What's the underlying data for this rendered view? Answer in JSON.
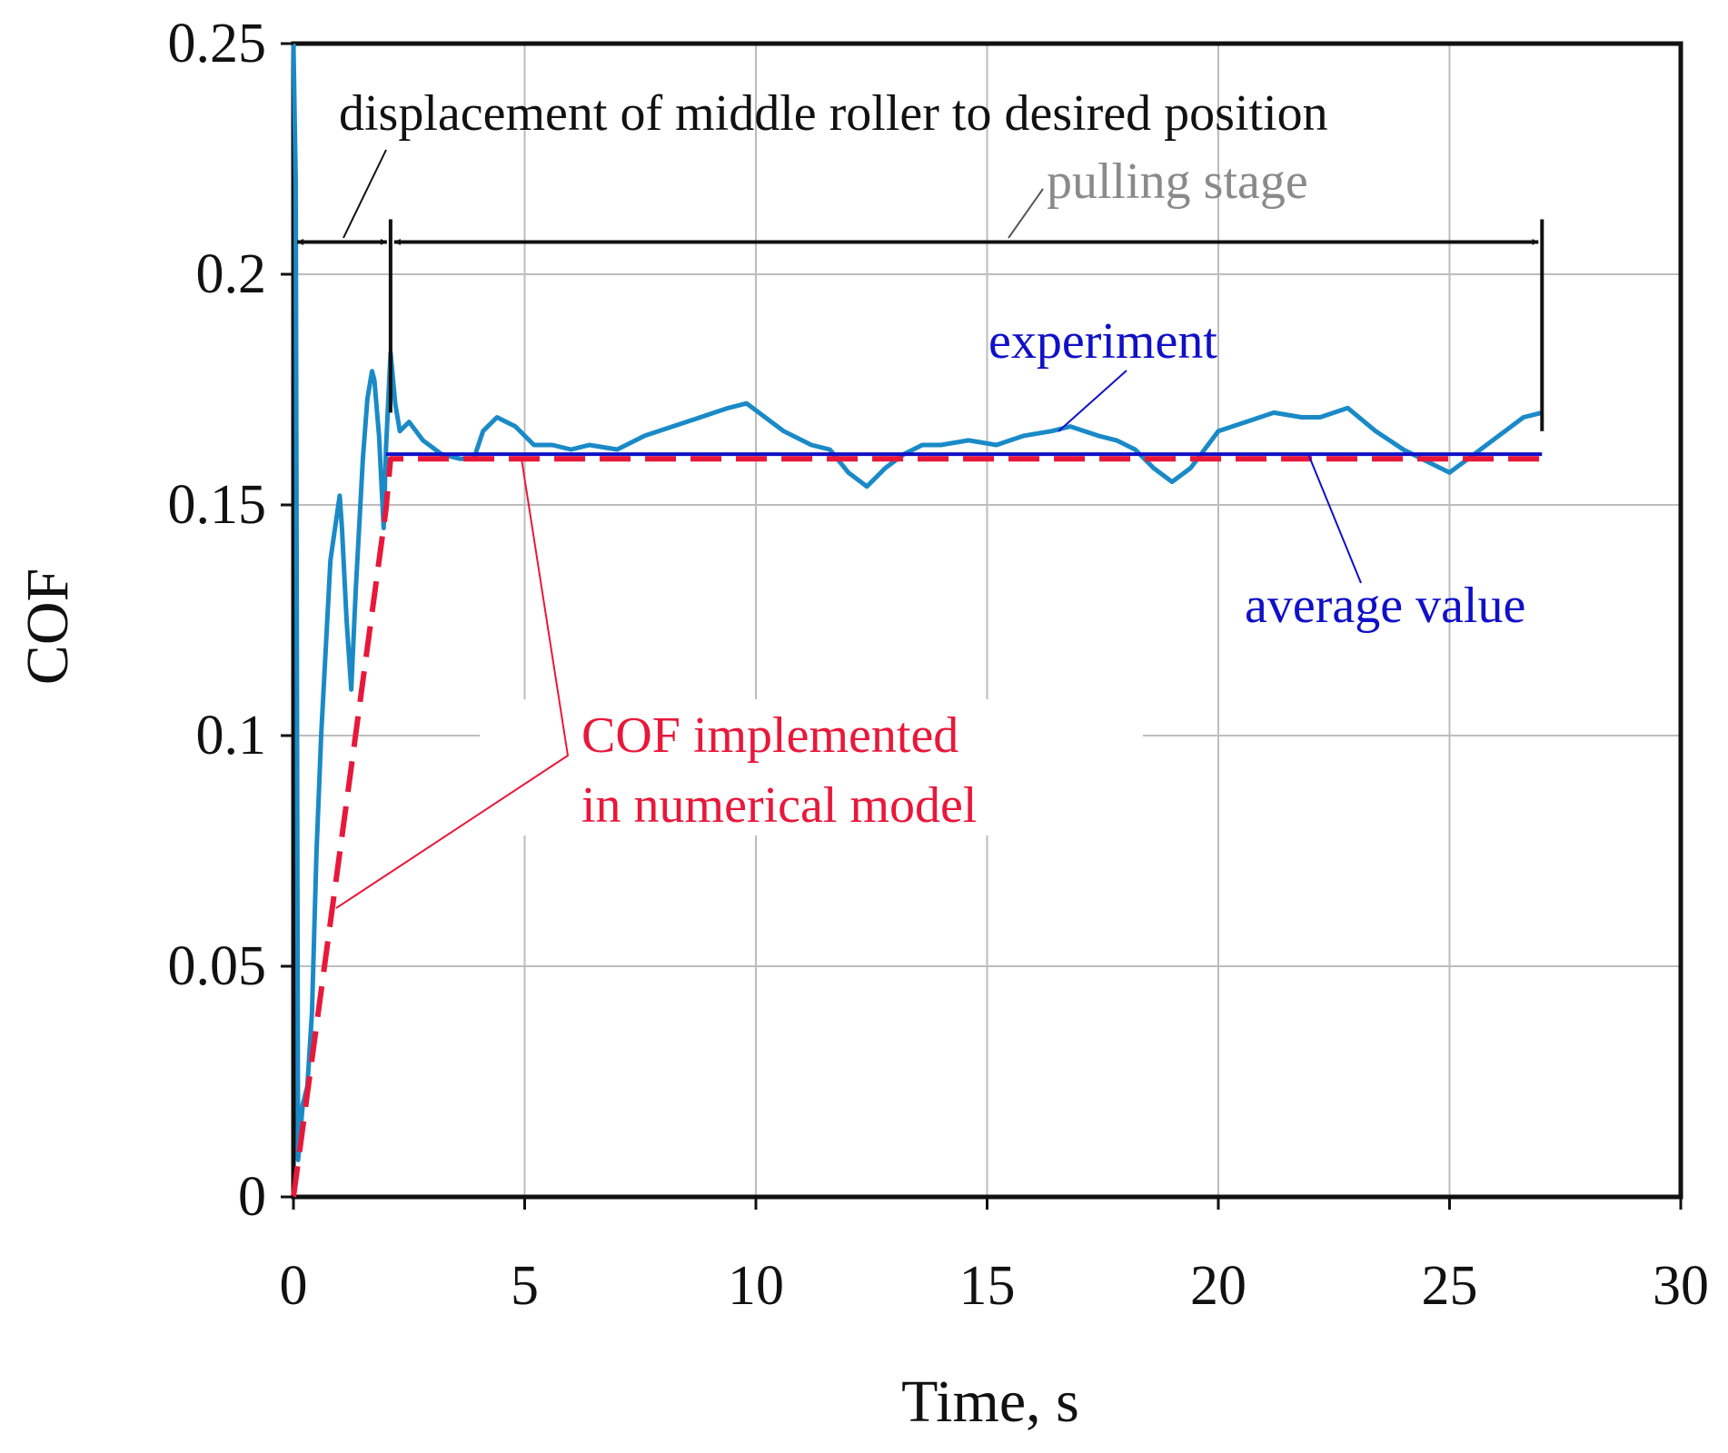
{
  "chart_data": {
    "type": "line",
    "title": "",
    "xlabel": "Time, s",
    "ylabel": "COF",
    "xlim": [
      0,
      30
    ],
    "ylim": [
      0,
      0.25
    ],
    "xticks": [
      0,
      5,
      10,
      15,
      20,
      25,
      30
    ],
    "yticks": [
      0,
      0.05,
      0.1,
      0.15,
      0.2,
      0.25
    ],
    "xtick_labels": [
      "0",
      "5",
      "10",
      "15",
      "20",
      "25",
      "30"
    ],
    "ytick_labels": [
      "0",
      "0.05",
      "0.1",
      "0.15",
      "0.2",
      "0.25"
    ],
    "grid": true,
    "series": [
      {
        "name": "experiment",
        "color": "#1a8ac7",
        "style": "solid",
        "x": [
          0,
          0.05,
          0.1,
          0.2,
          0.3,
          0.4,
          0.5,
          0.6,
          0.8,
          0.9,
          1.0,
          1.05,
          1.15,
          1.25,
          1.35,
          1.5,
          1.6,
          1.7,
          1.75,
          1.85,
          1.95,
          2.0,
          2.1,
          2.2,
          2.3,
          2.5,
          2.8,
          3.2,
          3.6,
          3.9,
          4.1,
          4.4,
          4.8,
          5.2,
          5.6,
          6.0,
          6.4,
          7.0,
          7.6,
          8.2,
          8.8,
          9.4,
          9.8,
          10.2,
          10.6,
          11.2,
          11.6,
          12.0,
          12.4,
          12.8,
          13.2,
          13.6,
          14.0,
          14.6,
          15.2,
          15.8,
          16.4,
          16.8,
          17.4,
          17.8,
          18.2,
          18.6,
          19.0,
          19.4,
          20.0,
          20.6,
          21.2,
          21.8,
          22.2,
          22.8,
          23.4,
          24.0,
          24.6,
          25.0,
          25.4,
          25.8,
          26.2,
          26.6,
          27.0
        ],
        "y": [
          0.25,
          0.22,
          0.008,
          0.02,
          0.024,
          0.04,
          0.075,
          0.1,
          0.138,
          0.145,
          0.152,
          0.145,
          0.125,
          0.11,
          0.132,
          0.16,
          0.173,
          0.179,
          0.177,
          0.165,
          0.145,
          0.162,
          0.183,
          0.172,
          0.166,
          0.168,
          0.164,
          0.161,
          0.16,
          0.16,
          0.166,
          0.169,
          0.167,
          0.163,
          0.163,
          0.162,
          0.163,
          0.162,
          0.165,
          0.167,
          0.169,
          0.171,
          0.172,
          0.169,
          0.166,
          0.163,
          0.162,
          0.157,
          0.154,
          0.158,
          0.161,
          0.163,
          0.163,
          0.164,
          0.163,
          0.165,
          0.166,
          0.167,
          0.165,
          0.164,
          0.162,
          0.158,
          0.155,
          0.158,
          0.166,
          0.168,
          0.17,
          0.169,
          0.169,
          0.171,
          0.166,
          0.162,
          0.159,
          0.157,
          0.16,
          0.163,
          0.166,
          0.169,
          0.17
        ]
      },
      {
        "name": "average value",
        "color": "#1010c8",
        "style": "solid",
        "x": [
          2.0,
          27.0
        ],
        "y": [
          0.161,
          0.161
        ]
      },
      {
        "name": "COF implemented in numerical model",
        "color": "#e8183a",
        "style": "dashed",
        "x": [
          0,
          2.0,
          2.1,
          27.0
        ],
        "y": [
          0,
          0.149,
          0.16,
          0.16
        ]
      }
    ],
    "annotations": [
      {
        "text": "displacement of middle roller to desired position",
        "color": "#111111"
      },
      {
        "text": "pulling stage",
        "color": "#8a8a8a"
      },
      {
        "text": "experiment",
        "color": "#1010c8"
      },
      {
        "text": "average value",
        "color": "#1010c8"
      },
      {
        "text": "COF implemented",
        "color": "#e8183a"
      },
      {
        "text": "in numerical model",
        "color": "#e8183a"
      }
    ],
    "stage_arrows": {
      "displacement": [
        0,
        2.1
      ],
      "pulling": [
        2.1,
        27.0
      ],
      "y": 0.207
    }
  }
}
